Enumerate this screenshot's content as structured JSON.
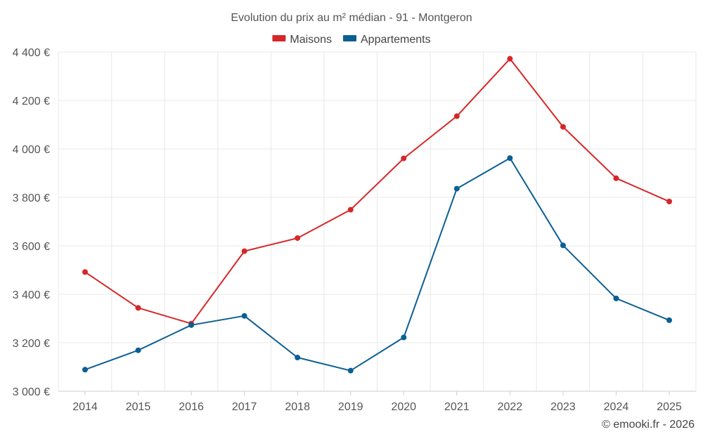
{
  "chart_data": {
    "type": "line",
    "title": "Evolution du prix au m² médian - 91 - Montgeron",
    "categories": [
      "2014",
      "2015",
      "2016",
      "2017",
      "2018",
      "2019",
      "2020",
      "2021",
      "2022",
      "2023",
      "2024",
      "2025"
    ],
    "series": [
      {
        "name": "Maisons",
        "color": "#d62728",
        "values": [
          3492,
          3344,
          3279,
          3578,
          3632,
          3749,
          3961,
          4135,
          4372,
          4091,
          3879,
          3783
        ]
      },
      {
        "name": "Appartements",
        "color": "#0b5f93",
        "values": [
          3089,
          3169,
          3273,
          3311,
          3139,
          3085,
          3222,
          3836,
          3962,
          3602,
          3383,
          3293
        ]
      }
    ],
    "ylim": [
      3000,
      4400
    ],
    "yticks": [
      3000,
      3200,
      3400,
      3600,
      3800,
      4000,
      4200,
      4400
    ],
    "ytick_labels": [
      "3 000 €",
      "3 200 €",
      "3 400 €",
      "3 600 €",
      "3 800 €",
      "4 000 €",
      "4 200 €",
      "4 400 €"
    ],
    "xlabel": "",
    "ylabel": "",
    "grid": true,
    "legend": "top-center"
  },
  "credit": "© emooki.fr - 2026"
}
